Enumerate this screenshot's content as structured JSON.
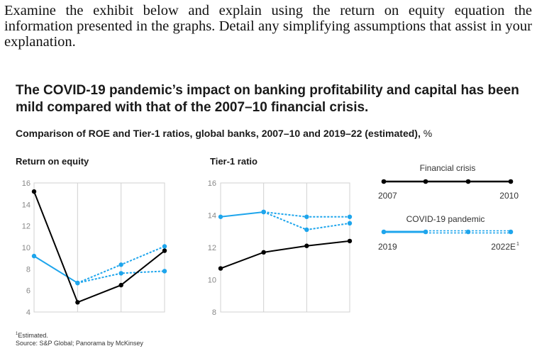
{
  "question": "Examine the exhibit below and explain using the return on equity equation the information presented in the graphs. Detail any simplifying assumptions that assist in your explanation.",
  "exhibit": {
    "headline": "The COVID-19 pandemic’s impact on banking profitability and capital has been mild compared with that of the 2007–10 financial crisis.",
    "subtitle": "Comparison of ROE and Tier-1 ratios, global banks, 2007–10 and 2019–22 (estimated),",
    "unit": "%",
    "footnote_estimated": "Estimated.",
    "footnote_source": "Source: S&P Global; Panorama by McKinsey",
    "footnote_marker": "1"
  },
  "chart_data": [
    {
      "type": "line",
      "title": "Return on equity",
      "ylim": [
        4,
        16
      ],
      "yticks": [
        "16",
        "14",
        "12",
        "10",
        "8",
        "6",
        "4"
      ],
      "x_periods": [
        1,
        2,
        3,
        4
      ],
      "series": [
        {
          "name": "Financial crisis",
          "color": "#000000",
          "style": "solid",
          "values": [
            15.2,
            4.9,
            6.5,
            9.7
          ]
        },
        {
          "name": "COVID-19 pandemic",
          "color": "#1ea5ec",
          "style": "solid",
          "values": [
            9.2,
            6.7
          ]
        },
        {
          "name": "COVID-19 pandemic (estimate, upper)",
          "color": "#1ea5ec",
          "style": "dashed",
          "values": [
            null,
            6.7,
            8.4,
            10.1
          ]
        },
        {
          "name": "COVID-19 pandemic (estimate, lower)",
          "color": "#1ea5ec",
          "style": "dashed",
          "values": [
            null,
            6.7,
            7.6,
            7.8
          ]
        }
      ]
    },
    {
      "type": "line",
      "title": "Tier-1 ratio",
      "ylim": [
        8,
        16
      ],
      "yticks": [
        "16",
        "14",
        "12",
        "10",
        "8"
      ],
      "x_periods": [
        1,
        2,
        3,
        4
      ],
      "series": [
        {
          "name": "Financial crisis",
          "color": "#000000",
          "style": "solid",
          "values": [
            10.7,
            11.7,
            12.1,
            12.4
          ]
        },
        {
          "name": "COVID-19 pandemic",
          "color": "#1ea5ec",
          "style": "solid",
          "values": [
            13.9,
            14.2
          ]
        },
        {
          "name": "COVID-19 pandemic (estimate, upper)",
          "color": "#1ea5ec",
          "style": "dashed",
          "values": [
            null,
            14.2,
            13.9,
            13.9
          ]
        },
        {
          "name": "COVID-19 pandemic (estimate, lower)",
          "color": "#1ea5ec",
          "style": "dashed",
          "values": [
            null,
            14.2,
            13.1,
            13.5
          ]
        }
      ]
    }
  ],
  "legend": {
    "crisis_title": "Financial crisis",
    "crisis_start": "2007",
    "crisis_end": "2010",
    "covid_title": "COVID-19 pandemic",
    "covid_start": "2019",
    "covid_end": "2022E",
    "covid_end_marker": "1"
  }
}
